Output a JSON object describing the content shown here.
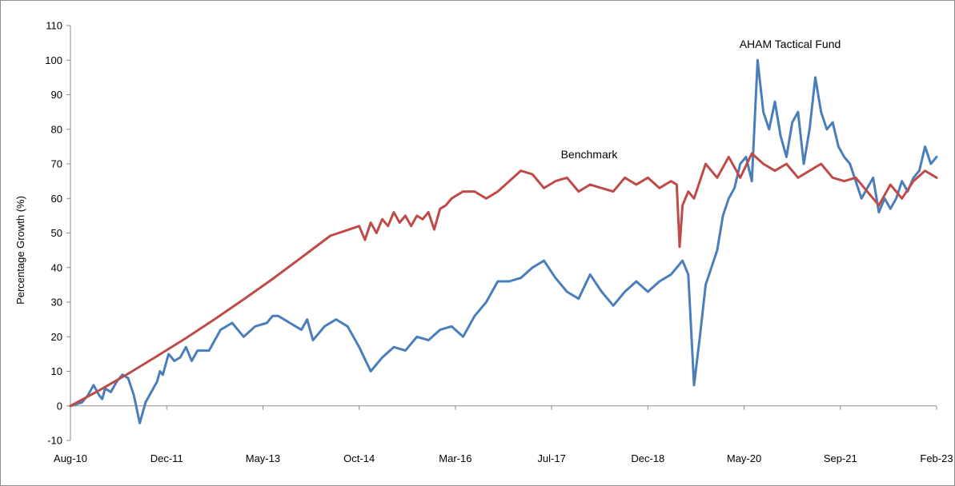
{
  "chart_data": {
    "type": "line",
    "title": "",
    "xlabel": "",
    "ylabel": "Percentage Growth (%)",
    "ylim": [
      -10,
      110
    ],
    "yticks": [
      -10,
      0,
      10,
      20,
      30,
      40,
      50,
      60,
      70,
      80,
      90,
      100,
      110
    ],
    "xticks": [
      "Aug-10",
      "Dec-11",
      "May-13",
      "Oct-14",
      "Mar-16",
      "Jul-17",
      "Dec-18",
      "May-20",
      "Sep-21",
      "Feb-23"
    ],
    "grid": false,
    "colors": {
      "fund": "#4a7ebb",
      "benchmark": "#be4b48",
      "axis": "#8c8c8c"
    },
    "annotations": [
      {
        "text": "AHAM Tactical Fund",
        "series": "AHAM Tactical Fund"
      },
      {
        "text": "Benchmark",
        "series": "Benchmark"
      }
    ],
    "x_domain": [
      0,
      150
    ],
    "series": [
      {
        "name": "AHAM Tactical Fund",
        "color": "#4a7ebb",
        "x": [
          0,
          2,
          3,
          4,
          5,
          5.5,
          6,
          7,
          8,
          9,
          10,
          11,
          12,
          13,
          14,
          15,
          15.5,
          16,
          16.5,
          17,
          18,
          19,
          20,
          21,
          22,
          24,
          26,
          28,
          30,
          32,
          34,
          35,
          36,
          38,
          40,
          41,
          42,
          44,
          46,
          48,
          50,
          52,
          54,
          56,
          58,
          60,
          62,
          64,
          66,
          68,
          70,
          72,
          74,
          76,
          78,
          80,
          82,
          84,
          86,
          88,
          90,
          92,
          94,
          96,
          98,
          100,
          102,
          104,
          105,
          106,
          107,
          108,
          109,
          110,
          111,
          112,
          113,
          114,
          115,
          116,
          117,
          118,
          119,
          120,
          121,
          122,
          123,
          124,
          125,
          126,
          127,
          128,
          129,
          130,
          131,
          132,
          133,
          134,
          135,
          136,
          137,
          138,
          139,
          140,
          141,
          142,
          143,
          144,
          145,
          146,
          147,
          148,
          149,
          150
        ],
        "y": [
          0,
          1,
          3,
          6,
          3,
          2,
          5,
          4,
          7,
          9,
          8,
          3,
          -5,
          1,
          4,
          7,
          10,
          9,
          12,
          15,
          13,
          14,
          17,
          13,
          16,
          16,
          22,
          24,
          20,
          23,
          24,
          26,
          26,
          24,
          22,
          25,
          19,
          23,
          25,
          23,
          17,
          10,
          14,
          17,
          16,
          20,
          19,
          22,
          23,
          20,
          26,
          30,
          36,
          36,
          37,
          40,
          42,
          37,
          33,
          31,
          38,
          33,
          29,
          33,
          36,
          33,
          36,
          38,
          40,
          42,
          38,
          6,
          20,
          35,
          40,
          45,
          55,
          60,
          63,
          70,
          72,
          65,
          100,
          85,
          80,
          88,
          78,
          72,
          82,
          85,
          70,
          80,
          95,
          85,
          80,
          82,
          75,
          72,
          70,
          65,
          60,
          63,
          66,
          56,
          60,
          57,
          60,
          65,
          62,
          66,
          68,
          75,
          70,
          72
        ]
      },
      {
        "name": "Benchmark",
        "color": "#be4b48",
        "x": [
          0,
          5,
          10,
          15,
          20,
          25,
          30,
          35,
          40,
          45,
          50,
          51,
          52,
          53,
          54,
          55,
          56,
          57,
          58,
          59,
          60,
          61,
          62,
          63,
          64,
          65,
          66,
          67,
          68,
          70,
          72,
          74,
          76,
          78,
          80,
          82,
          84,
          86,
          88,
          90,
          92,
          94,
          96,
          98,
          100,
          102,
          104,
          105,
          105.5,
          106,
          107,
          108,
          110,
          112,
          114,
          116,
          118,
          120,
          122,
          124,
          126,
          128,
          130,
          132,
          134,
          136,
          138,
          140,
          142,
          144,
          146,
          148,
          150
        ],
        "y": [
          0,
          4.5,
          9.3,
          14.4,
          19.6,
          25.1,
          30.8,
          36.7,
          42.9,
          49.2,
          52,
          48,
          53,
          50,
          54,
          52,
          56,
          53,
          55,
          52,
          55,
          54,
          56,
          51,
          57,
          58,
          60,
          61,
          62,
          62,
          60,
          62,
          65,
          68,
          67,
          63,
          65,
          66,
          62,
          64,
          63,
          62,
          66,
          64,
          66,
          63,
          65,
          64,
          46,
          58,
          62,
          60,
          70,
          66,
          72,
          66,
          73,
          70,
          68,
          70,
          66,
          68,
          70,
          66,
          65,
          66,
          62,
          58,
          64,
          60,
          65,
          68,
          66
        ]
      }
    ]
  }
}
